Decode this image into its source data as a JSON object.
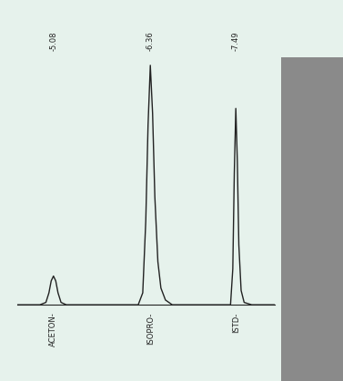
{
  "chart_data": {
    "type": "line",
    "x": [
      4.6,
      4.9,
      4.98,
      5.02,
      5.05,
      5.08,
      5.11,
      5.14,
      5.18,
      5.25,
      6.0,
      6.2,
      6.26,
      6.3,
      6.33,
      6.36,
      6.39,
      6.42,
      6.46,
      6.5,
      6.56,
      6.65,
      7.2,
      7.42,
      7.45,
      7.47,
      7.49,
      7.51,
      7.53,
      7.56,
      7.6,
      7.7,
      8.0
    ],
    "values": [
      0,
      0,
      0.01,
      0.05,
      0.1,
      0.12,
      0.1,
      0.05,
      0.01,
      0,
      0,
      0,
      0.05,
      0.35,
      0.75,
      1.0,
      0.8,
      0.45,
      0.18,
      0.07,
      0.02,
      0,
      0,
      0,
      0.15,
      0.55,
      0.82,
      0.6,
      0.25,
      0.06,
      0.01,
      0,
      0
    ],
    "color": "#222222",
    "xlim": [
      4.6,
      8.0
    ],
    "ylim": [
      0,
      1.05
    ],
    "tick_labels": false,
    "peaks": [
      {
        "name": "ACETON-",
        "retention_time": 5.08,
        "retention_label": "-5.08"
      },
      {
        "name": "ISOPRO-",
        "retention_time": 6.36,
        "retention_label": "-6.36"
      },
      {
        "name": "ISTD-",
        "retention_time": 7.49,
        "retention_label": "-7.49"
      }
    ]
  }
}
